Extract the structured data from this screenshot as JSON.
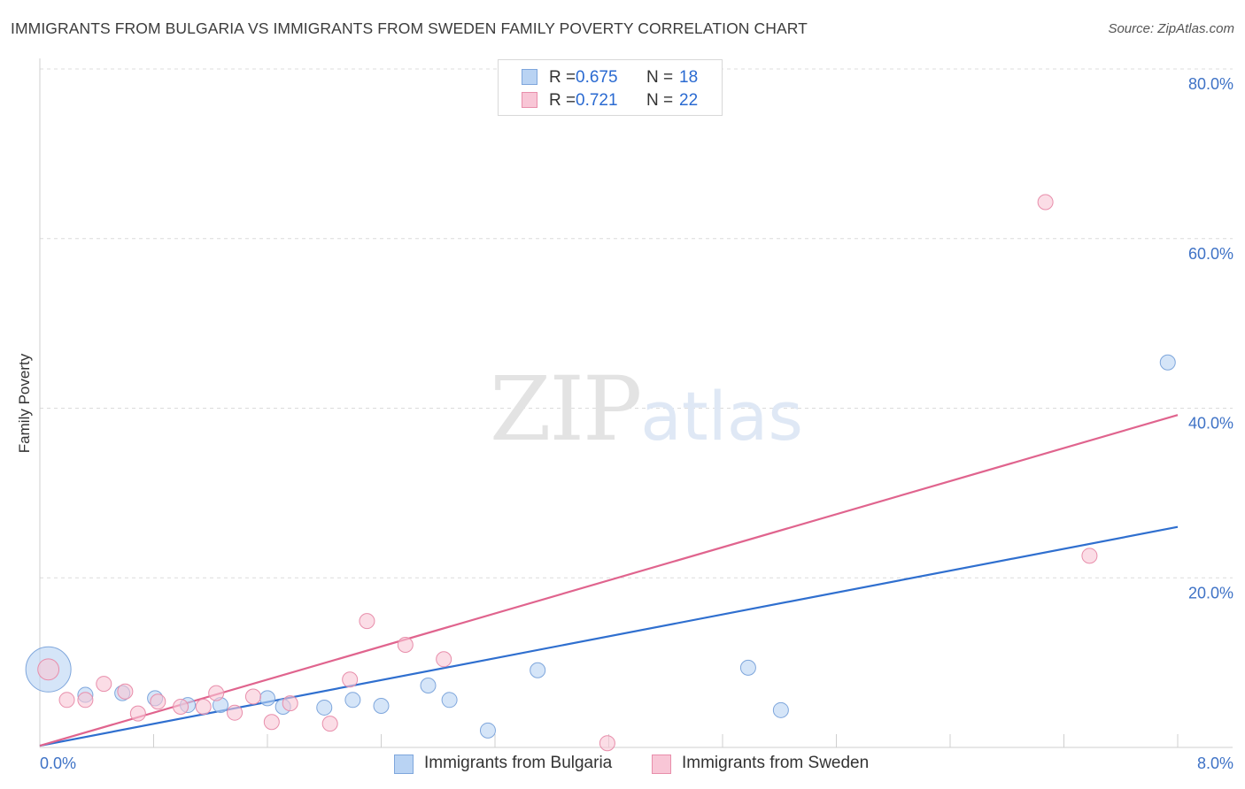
{
  "header": {
    "title": "IMMIGRANTS FROM BULGARIA VS IMMIGRANTS FROM SWEDEN FAMILY POVERTY CORRELATION CHART",
    "source": "Source: ZipAtlas.com"
  },
  "watermark": {
    "part1": "ZIP",
    "part2": "atlas"
  },
  "legend": {
    "r_label": "R =",
    "n_label": "N =",
    "entries": [
      {
        "name": "Immigrants from Bulgaria",
        "r": "0.675",
        "n": "18"
      },
      {
        "name": "Immigrants from Sweden",
        "r": "0.721",
        "n": "22"
      }
    ]
  },
  "colors": {
    "bulgaria_fill": "#b9d3f3",
    "bulgaria_stroke": "#7ea6dc",
    "bulgaria_line": "#2f6fcf",
    "sweden_fill": "#f8c6d6",
    "sweden_stroke": "#e88eab",
    "sweden_line": "#e0648e",
    "tick_label": "#3e72c6",
    "grid": "#dcdcdc"
  },
  "chart_data": {
    "type": "scatter",
    "title": "IMMIGRANTS FROM BULGARIA VS IMMIGRANTS FROM SWEDEN FAMILY POVERTY CORRELATION CHART",
    "xlabel": "",
    "ylabel": "Family Poverty",
    "xlim": [
      0,
      8
    ],
    "ylim": [
      0,
      80
    ],
    "x_tick_labels": [
      "0.0%",
      "8.0%"
    ],
    "y_ticks": [
      20,
      40,
      60,
      80
    ],
    "y_tick_labels": [
      "20.0%",
      "40.0%",
      "60.0%",
      "80.0%"
    ],
    "grid": true,
    "legend_position": "top-center",
    "series": [
      {
        "name": "Immigrants from Bulgaria",
        "points": [
          [
            0.06,
            9.2,
            3.0
          ],
          [
            0.32,
            6.2,
            1
          ],
          [
            0.58,
            6.4,
            1
          ],
          [
            0.81,
            5.8,
            1
          ],
          [
            1.04,
            5.0,
            1
          ],
          [
            1.27,
            5.0,
            1
          ],
          [
            1.6,
            5.8,
            1
          ],
          [
            1.71,
            4.8,
            1
          ],
          [
            2.0,
            4.7,
            1
          ],
          [
            2.2,
            5.6,
            1
          ],
          [
            2.4,
            4.9,
            1
          ],
          [
            2.73,
            7.3,
            1
          ],
          [
            2.88,
            5.6,
            1
          ],
          [
            3.15,
            2.0,
            1
          ],
          [
            3.5,
            9.1,
            1
          ],
          [
            4.98,
            9.4,
            1
          ],
          [
            5.21,
            4.4,
            1
          ],
          [
            7.93,
            45.4,
            1
          ]
        ],
        "trend": {
          "x": [
            0,
            8
          ],
          "y": [
            0.2,
            26.0
          ]
        }
      },
      {
        "name": "Immigrants from Sweden",
        "points": [
          [
            0.06,
            9.2,
            1.4
          ],
          [
            0.19,
            5.6,
            1
          ],
          [
            0.32,
            5.6,
            1
          ],
          [
            0.45,
            7.5,
            1
          ],
          [
            0.6,
            6.6,
            1
          ],
          [
            0.69,
            4.0,
            1
          ],
          [
            0.83,
            5.4,
            1
          ],
          [
            0.99,
            4.8,
            1
          ],
          [
            1.15,
            4.8,
            1
          ],
          [
            1.24,
            6.4,
            1
          ],
          [
            1.37,
            4.1,
            1
          ],
          [
            1.5,
            6.0,
            1
          ],
          [
            1.63,
            3.0,
            1
          ],
          [
            1.76,
            5.2,
            1
          ],
          [
            2.04,
            2.8,
            1
          ],
          [
            2.18,
            8.0,
            1
          ],
          [
            2.3,
            14.9,
            1
          ],
          [
            2.57,
            12.1,
            1
          ],
          [
            2.84,
            10.4,
            1
          ],
          [
            3.99,
            0.5,
            1
          ],
          [
            7.07,
            64.3,
            1
          ],
          [
            7.38,
            22.6,
            1
          ]
        ],
        "trend": {
          "x": [
            0,
            8
          ],
          "y": [
            0.2,
            39.2
          ]
        }
      }
    ]
  }
}
